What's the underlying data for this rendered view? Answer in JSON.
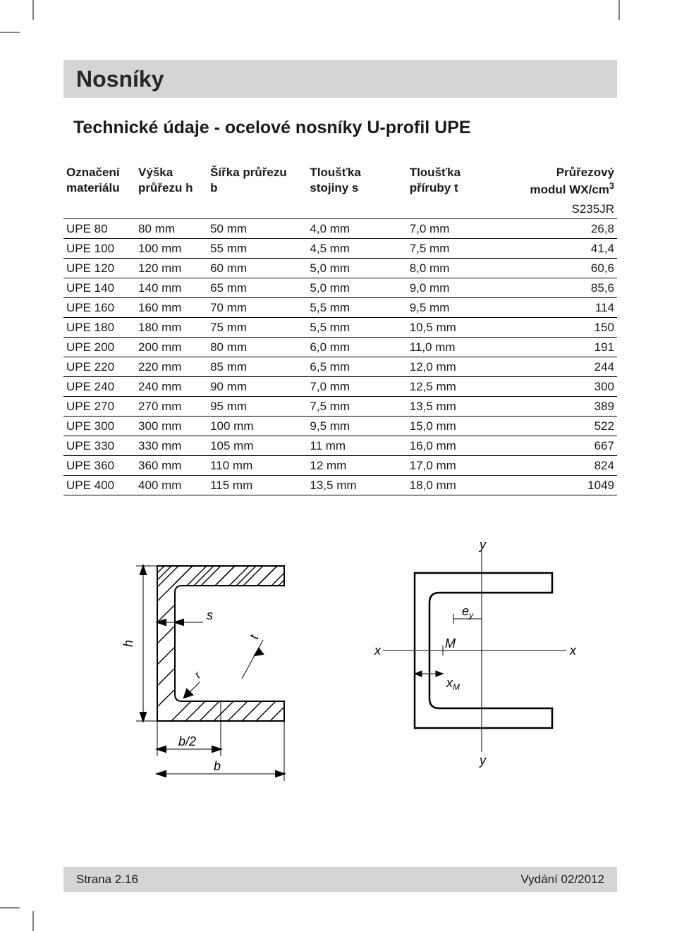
{
  "header": {
    "title": "Nosníky"
  },
  "subtitle": "Technické údaje - ocelové nosníky U-profil UPE",
  "table": {
    "columns": [
      {
        "line1": "Označení",
        "line2": "materiálu",
        "width": "13%"
      },
      {
        "line1": "Výška",
        "line2": "průřezu h",
        "width": "13%"
      },
      {
        "line1": "Šířka průřezu",
        "line2": "b",
        "width": "18%"
      },
      {
        "line1": "Tloušťka",
        "line2": "stojiny s",
        "width": "18%"
      },
      {
        "line1": "Tloušťka",
        "line2": "příruby t",
        "width": "18%"
      },
      {
        "line1": "Průřezový",
        "line2": "modul WX/cm",
        "sup": "3",
        "width": "20%"
      }
    ],
    "steel_grade": "S235JR",
    "rows": [
      [
        "UPE 80",
        "80 mm",
        "50 mm",
        "4,0 mm",
        "7,0 mm",
        "26,8"
      ],
      [
        "UPE 100",
        "100 mm",
        "55 mm",
        "4,5 mm",
        "7,5 mm",
        "41,4"
      ],
      [
        "UPE 120",
        "120 mm",
        "60 mm",
        "5,0 mm",
        "8,0 mm",
        "60,6"
      ],
      [
        "UPE 140",
        "140 mm",
        "65 mm",
        "5,0 mm",
        "9,0 mm",
        "85,6"
      ],
      [
        "UPE 160",
        "160 mm",
        "70 mm",
        "5,5 mm",
        "9,5 mm",
        "114"
      ],
      [
        "UPE 180",
        "180 mm",
        "75 mm",
        "5,5 mm",
        "10,5 mm",
        "150"
      ],
      [
        "UPE 200",
        "200 mm",
        "80 mm",
        "6,0 mm",
        "11,0 mm",
        "191"
      ],
      [
        "UPE 220",
        "220 mm",
        "85 mm",
        "6,5 mm",
        "12,0 mm",
        "244"
      ],
      [
        "UPE 240",
        "240 mm",
        "90 mm",
        "7,0 mm",
        "12,5 mm",
        "300"
      ],
      [
        "UPE 270",
        "270 mm",
        "95 mm",
        "7,5 mm",
        "13,5 mm",
        "389"
      ],
      [
        "UPE 300",
        "300 mm",
        "100 mm",
        "9,5 mm",
        "15,0 mm",
        "522"
      ],
      [
        "UPE 330",
        "330 mm",
        "105 mm",
        "11 mm",
        "16,0 mm",
        "667"
      ],
      [
        "UPE 360",
        "360 mm",
        "110 mm",
        "12 mm",
        "17,0 mm",
        "824"
      ],
      [
        "UPE 400",
        "400 mm",
        "115 mm",
        "13,5 mm",
        "18,0 mm",
        "1049"
      ]
    ]
  },
  "diagram_left": {
    "labels": {
      "h": "h",
      "s": "s",
      "t": "t",
      "r": "r",
      "b2": "b/2",
      "b": "b"
    },
    "stroke": "#000000",
    "stroke_width": 2
  },
  "diagram_right": {
    "labels": {
      "y_top": "y",
      "y_bot": "y",
      "x_left": "x",
      "x_right": "x",
      "ey": "e",
      "ey_sub": "y",
      "M": "M",
      "xm": "x",
      "xm_sub": "M"
    },
    "stroke": "#000000",
    "stroke_width": 2
  },
  "footer": {
    "page": "Strana 2.16",
    "edition": "Vydání 02/2012"
  },
  "colors": {
    "header_bg": "#d5d5d7",
    "text": "#1a1a1a",
    "rule": "#000000",
    "page_bg": "#ffffff"
  }
}
